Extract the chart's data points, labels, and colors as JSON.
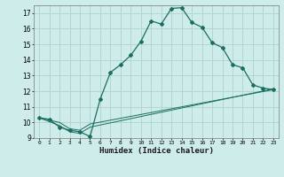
{
  "xlabel": "Humidex (Indice chaleur)",
  "bg_color": "#ceecea",
  "grid_color": "#aed4cc",
  "line_color": "#1a6e60",
  "xlim": [
    -0.5,
    23.5
  ],
  "ylim": [
    9,
    17.5
  ],
  "yticks": [
    9,
    10,
    11,
    12,
    13,
    14,
    15,
    16,
    17
  ],
  "xtick_vals": [
    0,
    1,
    2,
    3,
    4,
    5,
    6,
    7,
    8,
    9,
    10,
    11,
    12,
    13,
    14,
    15,
    16,
    17,
    18,
    19,
    20,
    21,
    22,
    23
  ],
  "xtick_labels": [
    "0",
    "1",
    "2",
    "3",
    "4",
    "5",
    "6",
    "7",
    "8",
    "9",
    "10",
    "11",
    "12",
    "13",
    "14",
    "15",
    "16",
    "17",
    "18",
    "19",
    "20",
    "21",
    "22",
    "23"
  ],
  "line1_x": [
    0,
    1,
    2,
    3,
    4,
    5,
    6,
    7,
    8,
    9,
    10,
    11,
    12,
    13,
    14,
    15,
    16,
    17,
    18,
    19,
    20,
    21,
    22,
    23
  ],
  "line1_y": [
    10.3,
    10.2,
    9.7,
    9.5,
    9.4,
    9.1,
    11.5,
    13.2,
    13.7,
    14.3,
    15.2,
    16.5,
    16.3,
    17.3,
    17.35,
    16.4,
    16.1,
    15.1,
    14.8,
    13.7,
    13.5,
    12.4,
    12.2,
    12.1
  ],
  "line2_x": [
    0,
    2,
    3,
    4,
    5,
    23
  ],
  "line2_y": [
    10.3,
    10.0,
    9.6,
    9.5,
    9.9,
    12.1
  ],
  "line3_x": [
    0,
    2,
    3,
    4,
    5,
    23
  ],
  "line3_y": [
    10.3,
    9.8,
    9.4,
    9.3,
    9.7,
    12.15
  ]
}
